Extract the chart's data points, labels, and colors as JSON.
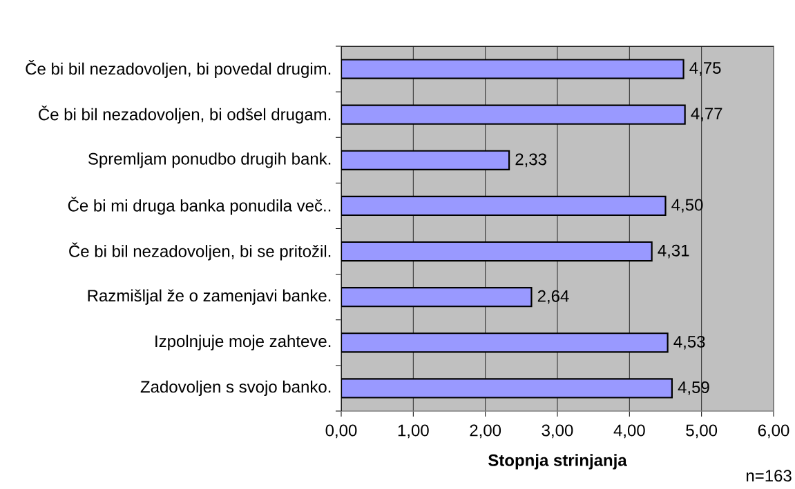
{
  "chart_data": {
    "type": "bar",
    "orientation": "horizontal",
    "categories": [
      "Če bi bil nezadovoljen, bi povedal drugim.",
      "Če bi bil nezadovoljen, bi odšel drugam.",
      "Spremljam ponudbo drugih bank.",
      "Če bi mi druga banka ponudila več..",
      "Če bi bil nezadovoljen, bi se pritožil.",
      "Razmišljal že o zamenjavi banke.",
      "Izpolnjuje moje zahteve.",
      "Zadovoljen s svojo banko."
    ],
    "values": [
      4.75,
      4.77,
      2.33,
      4.5,
      4.31,
      2.64,
      4.53,
      4.59
    ],
    "value_labels": [
      "4,75",
      "4,77",
      "2,33",
      "4,50",
      "4,31",
      "2,64",
      "4,53",
      "4,59"
    ],
    "color": "#9999ff",
    "xlabel": "Stopnja strinjanja",
    "xlim": [
      0,
      6
    ],
    "xticks": [
      {
        "value": 0,
        "label": "0,00"
      },
      {
        "value": 1,
        "label": "1,00"
      },
      {
        "value": 2,
        "label": "2,00"
      },
      {
        "value": 3,
        "label": "3,00"
      },
      {
        "value": 4,
        "label": "4,00"
      },
      {
        "value": 5,
        "label": "5,00"
      },
      {
        "value": 6,
        "label": "6,00"
      }
    ],
    "grid": "x",
    "annotations": [
      "n=163"
    ]
  }
}
